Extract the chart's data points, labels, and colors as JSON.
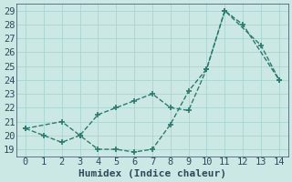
{
  "line1_x": [
    0,
    1,
    2,
    3,
    4,
    5,
    6,
    7,
    8,
    9,
    10,
    11,
    12,
    14
  ],
  "line1_y": [
    20.5,
    20.0,
    19.5,
    20.0,
    19.0,
    19.0,
    18.8,
    19.0,
    20.8,
    23.2,
    24.8,
    29.0,
    28.0,
    24.0
  ],
  "line2_x": [
    0,
    2,
    3,
    4,
    5,
    6,
    7,
    8,
    9,
    10,
    11,
    13,
    14
  ],
  "line2_y": [
    20.5,
    21.0,
    20.0,
    21.5,
    22.0,
    22.5,
    23.0,
    22.0,
    21.8,
    24.8,
    29.0,
    26.5,
    24.0
  ],
  "color": "#2d7a6e",
  "xlabel": "Humidex (Indice chaleur)",
  "xlim": [
    -0.5,
    14.5
  ],
  "ylim": [
    18.5,
    29.5
  ],
  "yticks": [
    19,
    20,
    21,
    22,
    23,
    24,
    25,
    26,
    27,
    28,
    29
  ],
  "xticks": [
    0,
    1,
    2,
    3,
    4,
    5,
    6,
    7,
    8,
    9,
    10,
    11,
    12,
    13,
    14
  ],
  "bg_color": "#cce8e4",
  "grid_color": "#aad4d0",
  "font_color": "#2d4a5a",
  "xlabel_fontsize": 8,
  "tick_fontsize": 7.5
}
